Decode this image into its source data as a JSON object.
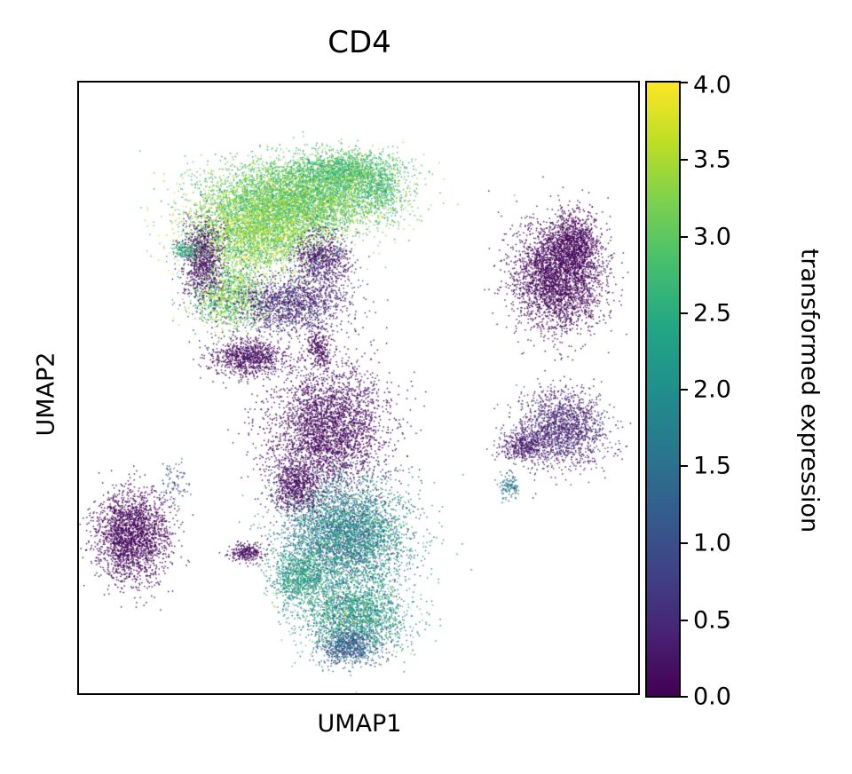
{
  "chart_data": {
    "type": "scatter",
    "title": "CD4",
    "xlabel": "UMAP1",
    "ylabel": "UMAP2",
    "colorbar": {
      "label": "transformed expression",
      "range": [
        0.0,
        4.0
      ],
      "ticks": [
        "0.0",
        "0.5",
        "1.0",
        "1.5",
        "2.0",
        "2.5",
        "3.0",
        "3.5",
        "4.0"
      ],
      "colormap": "viridis"
    },
    "x_ticks": [],
    "y_ticks": [],
    "grid": false,
    "clusters": [
      {
        "id": "upper-left-cd4-high",
        "center": [
          0.52,
          0.72
        ],
        "expression_mean": 3.1
      },
      {
        "id": "upper-left-lower-lobe",
        "center": [
          0.38,
          0.5
        ],
        "expression_mean": 0.6
      },
      {
        "id": "central-upper",
        "center": [
          0.62,
          0.42
        ],
        "expression_mean": 0.1
      },
      {
        "id": "central-lower-cd4-mid",
        "center": [
          0.64,
          0.22
        ],
        "expression_mean": 1.9
      },
      {
        "id": "far-left-small",
        "center": [
          0.12,
          0.24
        ],
        "expression_mean": 0.05
      },
      {
        "id": "right-top",
        "center": [
          0.9,
          0.62
        ],
        "expression_mean": 0.05
      },
      {
        "id": "right-bottom",
        "center": [
          0.86,
          0.45
        ],
        "expression_mean": 0.4
      }
    ]
  }
}
